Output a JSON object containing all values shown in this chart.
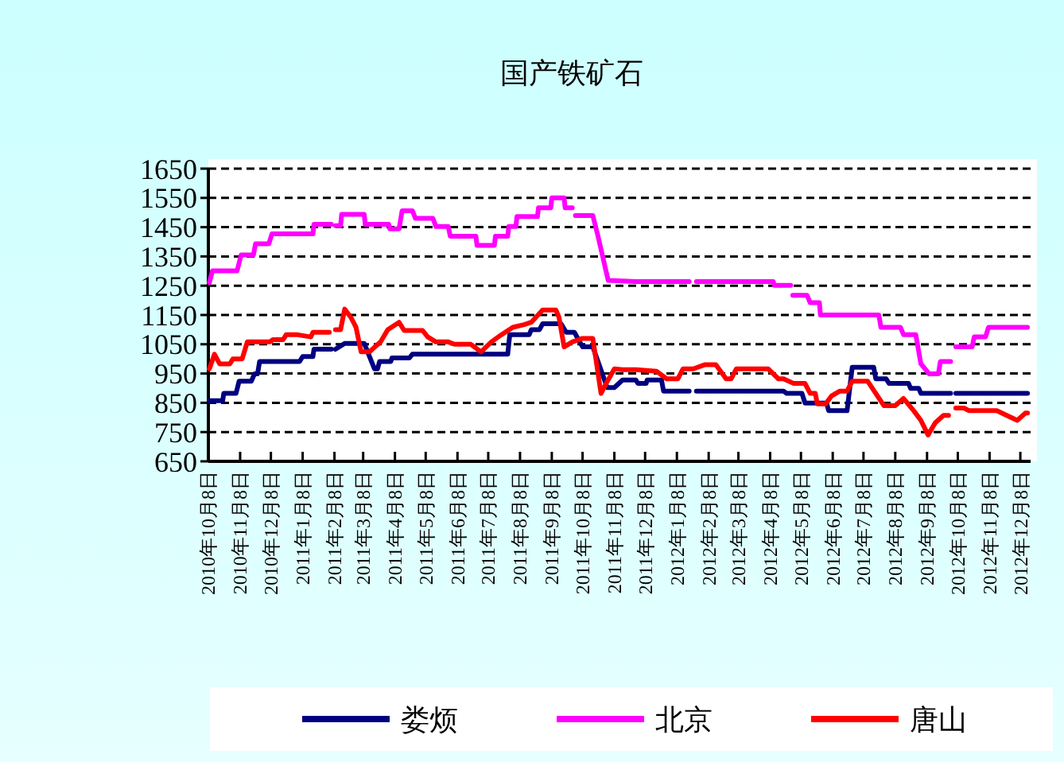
{
  "chart_data": {
    "type": "line",
    "title": "国产铁矿石",
    "xlim": [
      "2010-10-08",
      "2012-12-18"
    ],
    "xticks": [
      {
        "value": "2010-10-08",
        "label": "2010年10月8日"
      },
      {
        "value": "2010-11-08",
        "label": "2010年11月8日"
      },
      {
        "value": "2010-12-08",
        "label": "2010年12月8日"
      },
      {
        "value": "2011-01-08",
        "label": "2011年1月8日"
      },
      {
        "value": "2011-02-08",
        "label": "2011年2月8日"
      },
      {
        "value": "2011-03-08",
        "label": "2011年3月8日"
      },
      {
        "value": "2011-04-08",
        "label": "2011年4月8日"
      },
      {
        "value": "2011-05-08",
        "label": "2011年5月8日"
      },
      {
        "value": "2011-06-08",
        "label": "2011年6月8日"
      },
      {
        "value": "2011-07-08",
        "label": "2011年7月8日"
      },
      {
        "value": "2011-08-08",
        "label": "2011年8月8日"
      },
      {
        "value": "2011-09-08",
        "label": "2011年9月8日"
      },
      {
        "value": "2011-10-08",
        "label": "2011年10月8日"
      },
      {
        "value": "2011-11-08",
        "label": "2011年11月8日"
      },
      {
        "value": "2011-12-08",
        "label": "2011年12月8日"
      },
      {
        "value": "2012-01-08",
        "label": "2012年1月8日"
      },
      {
        "value": "2012-02-08",
        "label": "2012年2月8日"
      },
      {
        "value": "2012-03-08",
        "label": "2012年3月8日"
      },
      {
        "value": "2012-04-08",
        "label": "2012年4月8日"
      },
      {
        "value": "2012-05-08",
        "label": "2012年5月8日"
      },
      {
        "value": "2012-06-08",
        "label": "2012年6月8日"
      },
      {
        "value": "2012-07-08",
        "label": "2012年7月8日"
      },
      {
        "value": "2012-08-08",
        "label": "2012年8月8日"
      },
      {
        "value": "2012-09-08",
        "label": "2012年9月8日"
      },
      {
        "value": "2012-10-08",
        "label": "2012年10月8日"
      },
      {
        "value": "2012-11-08",
        "label": "2012年11月8日"
      },
      {
        "value": "2012-12-08",
        "label": "2012年12月8日"
      }
    ],
    "ylim": [
      650,
      1650
    ],
    "yticks": [
      650,
      750,
      850,
      950,
      1050,
      1150,
      1250,
      1350,
      1450,
      1550,
      1650
    ],
    "grid": "y",
    "legend": "bottom",
    "line_style": "solid",
    "marker": "none",
    "series": [
      {
        "name": "娄烦",
        "color": "#000080",
        "x": [
          "2010-10-09",
          "2010-10-22",
          "2010-10-23",
          "2010-11-04",
          "2010-11-07",
          "2010-11-19",
          "2010-11-22",
          "2010-11-25",
          "2010-11-27",
          "2011-01-05",
          "2011-01-08",
          "2011-01-18",
          "2011-01-19",
          "2011-02-05",
          "2011-02-07",
          "2011-02-09",
          "2011-02-18",
          "2011-03-09",
          "2011-03-19",
          "2011-03-22",
          "2011-03-24",
          "2011-04-04",
          "2011-04-05",
          "2011-04-22",
          "2011-04-25",
          "2011-07-27",
          "2011-07-29",
          "2011-08-17",
          "2011-08-19",
          "2011-08-27",
          "2011-08-30",
          "2011-09-17",
          "2011-09-22",
          "2011-09-30",
          "2011-10-08",
          "2011-10-18",
          "2011-11-01",
          "2011-11-08",
          "2011-11-16",
          "2011-11-29",
          "2011-12-01",
          "2011-12-09",
          "2011-12-10",
          "2011-12-24",
          "2011-12-26",
          "2012-01-20",
          "2012-01-23",
          "2012-01-27",
          "2012-04-21",
          "2012-04-24",
          "2012-05-09",
          "2012-05-12",
          "2012-06-02",
          "2012-06-04",
          "2012-06-22",
          "2012-06-27",
          "2012-07-18",
          "2012-07-20",
          "2012-07-30",
          "2012-08-02",
          "2012-08-21",
          "2012-08-23",
          "2012-08-31",
          "2012-09-02",
          "2012-10-01",
          "2012-10-03",
          "2012-10-06",
          "2012-12-15"
        ],
        "values": [
          857,
          857,
          882,
          882,
          924,
          924,
          949,
          949,
          991,
          991,
          1008,
          1008,
          1033,
          1033,
          null,
          1033,
          1053,
          1053,
          966,
          966,
          991,
          991,
          1003,
          1003,
          1016,
          1016,
          1083,
          1083,
          1100,
          1100,
          1120,
          1120,
          1091,
          1091,
          1041,
          1041,
          902,
          902,
          928,
          928,
          916,
          916,
          928,
          928,
          890,
          890,
          null,
          890,
          890,
          882,
          882,
          849,
          849,
          823,
          823,
          971,
          971,
          932,
          932,
          916,
          916,
          899,
          899,
          882,
          882,
          null,
          882,
          882
        ]
      },
      {
        "name": "北京",
        "color": "#ff00ff",
        "x": [
          "2010-10-09",
          "2010-10-12",
          "2010-11-05",
          "2010-11-09",
          "2010-11-21",
          "2010-11-23",
          "2010-12-06",
          "2010-12-09",
          "2011-01-18",
          "2011-01-19",
          "2011-02-05",
          "2011-02-07",
          "2011-02-09",
          "2011-02-14",
          "2011-02-15",
          "2011-03-09",
          "2011-03-10",
          "2011-04-02",
          "2011-04-03",
          "2011-04-12",
          "2011-04-15",
          "2011-04-25",
          "2011-04-28",
          "2011-05-15",
          "2011-05-18",
          "2011-05-30",
          "2011-06-01",
          "2011-06-26",
          "2011-06-27",
          "2011-07-14",
          "2011-07-15",
          "2011-07-27",
          "2011-07-28",
          "2011-08-04",
          "2011-08-05",
          "2011-08-25",
          "2011-08-26",
          "2011-09-07",
          "2011-09-08",
          "2011-09-20",
          "2011-09-21",
          "2011-09-28",
          "2011-09-29",
          "2011-10-01",
          "2011-10-18",
          "2011-10-23",
          "2011-11-02",
          "2011-11-29",
          "2012-01-20",
          "2012-01-23",
          "2012-01-27",
          "2012-04-11",
          "2012-04-12",
          "2012-04-28",
          "2012-04-29",
          "2012-04-30",
          "2012-05-14",
          "2012-05-17",
          "2012-05-26",
          "2012-05-27",
          "2012-07-23",
          "2012-07-25",
          "2012-08-13",
          "2012-08-16",
          "2012-08-28",
          "2012-09-02",
          "2012-09-10",
          "2012-09-19",
          "2012-09-21",
          "2012-10-01",
          "2012-10-03",
          "2012-10-06",
          "2012-10-22",
          "2012-10-24",
          "2012-11-04",
          "2012-11-07",
          "2012-12-15"
        ],
        "values": [
          1260,
          1301,
          1301,
          1355,
          1355,
          1393,
          1393,
          1427,
          1427,
          1460,
          1460,
          null,
          1455,
          1455,
          1494,
          1494,
          1460,
          1460,
          1444,
          1444,
          1506,
          1506,
          1480,
          1480,
          1452,
          1452,
          1419,
          1419,
          1388,
          1388,
          1419,
          1419,
          1452,
          1452,
          1486,
          1486,
          1516,
          1516,
          1550,
          1550,
          1516,
          1516,
          null,
          1490,
          1490,
          1420,
          1268,
          1264,
          1264,
          null,
          1264,
          1264,
          1251,
          1251,
          null,
          1217,
          1217,
          1192,
          1192,
          1150,
          1150,
          1108,
          1108,
          1083,
          1083,
          983,
          949,
          949,
          991,
          991,
          null,
          1041,
          1041,
          1075,
          1075,
          1108,
          1108
        ]
      },
      {
        "name": "唐山",
        "color": "#ff0000",
        "x": [
          "2010-10-09",
          "2010-10-14",
          "2010-10-19",
          "2010-10-29",
          "2010-11-01",
          "2010-11-10",
          "2010-11-15",
          "2010-12-07",
          "2010-12-10",
          "2010-12-20",
          "2010-12-23",
          "2011-01-02",
          "2011-01-16",
          "2011-01-18",
          "2011-02-03",
          "2011-02-06",
          "2011-02-09",
          "2011-02-14",
          "2011-02-18",
          "2011-02-24",
          "2011-03-01",
          "2011-03-06",
          "2011-03-14",
          "2011-03-17",
          "2011-03-25",
          "2011-04-01",
          "2011-04-12",
          "2011-04-17",
          "2011-05-05",
          "2011-05-10",
          "2011-05-18",
          "2011-05-30",
          "2011-06-05",
          "2011-06-21",
          "2011-07-01",
          "2011-07-11",
          "2011-07-21",
          "2011-08-01",
          "2011-08-12",
          "2011-08-19",
          "2011-08-30",
          "2011-09-12",
          "2011-09-15",
          "2011-09-20",
          "2011-09-28",
          "2011-10-08",
          "2011-10-18",
          "2011-10-26",
          "2011-10-31",
          "2011-11-08",
          "2011-11-16",
          "2011-11-29",
          "2011-12-19",
          "2011-12-29",
          "2012-01-09",
          "2012-01-14",
          "2012-01-24",
          "2012-02-04",
          "2012-02-15",
          "2012-02-25",
          "2012-03-01",
          "2012-03-06",
          "2012-04-06",
          "2012-04-16",
          "2012-04-21",
          "2012-05-01",
          "2012-05-12",
          "2012-05-17",
          "2012-05-22",
          "2012-05-24",
          "2012-06-01",
          "2012-06-07",
          "2012-06-15",
          "2012-06-22",
          "2012-06-27",
          "2012-07-12",
          "2012-07-20",
          "2012-07-28",
          "2012-08-08",
          "2012-08-16",
          "2012-08-26",
          "2012-09-02",
          "2012-09-09",
          "2012-09-16",
          "2012-09-24",
          "2012-09-29",
          "2012-10-02",
          "2012-10-06",
          "2012-10-14",
          "2012-10-19",
          "2012-11-15",
          "2012-12-05",
          "2012-12-13",
          "2012-12-15"
        ],
        "values": [
          966,
          1016,
          983,
          983,
          1000,
          1000,
          1058,
          1058,
          1066,
          1066,
          1083,
          1083,
          1075,
          1091,
          1091,
          null,
          1100,
          1100,
          1170,
          1142,
          1108,
          1024,
          1024,
          1033,
          1058,
          1100,
          1125,
          1097,
          1097,
          1075,
          1058,
          1058,
          1050,
          1050,
          1024,
          1058,
          1083,
          1108,
          1117,
          1125,
          1167,
          1167,
          1142,
          1041,
          1058,
          1070,
          1070,
          882,
          916,
          966,
          963,
          963,
          958,
          932,
          932,
          966,
          966,
          980,
          980,
          932,
          932,
          966,
          966,
          932,
          932,
          916,
          916,
          882,
          882,
          846,
          846,
          874,
          890,
          890,
          924,
          924,
          882,
          840,
          840,
          865,
          823,
          790,
          740,
          782,
          807,
          807,
          null,
          832,
          832,
          823,
          823,
          790,
          815,
          815
        ]
      }
    ]
  }
}
